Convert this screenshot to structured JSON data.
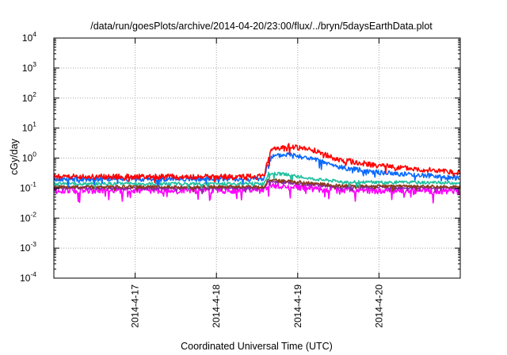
{
  "chart_data": {
    "type": "line",
    "title": "/data/run/goesPlots/archive/2014-04-20/23:00/flux/../bryn/5daysEarthData.plot",
    "xlabel": "Coordinated Universal Time (UTC)",
    "ylabel": "cGy/day",
    "yscale": "log",
    "ylim": [
      0.0001,
      10000
    ],
    "xlim": [
      0,
      5
    ],
    "grid": true,
    "y_ticks": [
      {
        "base": "10",
        "exp": "-4"
      },
      {
        "base": "10",
        "exp": "-3"
      },
      {
        "base": "10",
        "exp": "-2"
      },
      {
        "base": "10",
        "exp": "-1"
      },
      {
        "base": "10",
        "exp": "0"
      },
      {
        "base": "10",
        "exp": "1"
      },
      {
        "base": "10",
        "exp": "2"
      },
      {
        "base": "10",
        "exp": "3"
      },
      {
        "base": "10",
        "exp": "4"
      }
    ],
    "x_ticks": [
      {
        "label": "2014-4-17",
        "value": 1
      },
      {
        "label": "2014-4-18",
        "value": 2
      },
      {
        "label": "2014-4-19",
        "value": 3
      },
      {
        "label": "2014-4-20",
        "value": 4
      }
    ],
    "series": [
      {
        "color": "#ff0000",
        "knots": [
          [
            0,
            0.24
          ],
          [
            2.58,
            0.24
          ],
          [
            2.62,
            0.6
          ],
          [
            2.68,
            1.9
          ],
          [
            2.9,
            2.5
          ],
          [
            3.2,
            1.8
          ],
          [
            3.5,
            0.9
          ],
          [
            4.0,
            0.55
          ],
          [
            5.0,
            0.32
          ]
        ],
        "noise": 0.09
      },
      {
        "color": "#0a6aff",
        "knots": [
          [
            0,
            0.2
          ],
          [
            2.58,
            0.2
          ],
          [
            2.62,
            0.5
          ],
          [
            2.68,
            1.1
          ],
          [
            2.9,
            1.35
          ],
          [
            3.2,
            0.9
          ],
          [
            3.5,
            0.5
          ],
          [
            4.0,
            0.33
          ],
          [
            5.0,
            0.22
          ]
        ],
        "noise": 0.08
      },
      {
        "color": "#20c0a0",
        "knots": [
          [
            0,
            0.14
          ],
          [
            2.58,
            0.14
          ],
          [
            2.64,
            0.3
          ],
          [
            2.8,
            0.3
          ],
          [
            3.2,
            0.2
          ],
          [
            3.6,
            0.16
          ],
          [
            5.0,
            0.15
          ]
        ],
        "noise": 0.05
      },
      {
        "color": "#8a3a1a",
        "knots": [
          [
            0,
            0.11
          ],
          [
            2.58,
            0.11
          ],
          [
            2.64,
            0.19
          ],
          [
            2.9,
            0.17
          ],
          [
            3.5,
            0.12
          ],
          [
            5.0,
            0.11
          ]
        ],
        "noise": 0.05
      },
      {
        "color": "#8a2aa8",
        "knots": [
          [
            0,
            0.1
          ],
          [
            2.58,
            0.1
          ],
          [
            2.64,
            0.17
          ],
          [
            2.9,
            0.15
          ],
          [
            3.5,
            0.11
          ],
          [
            5.0,
            0.1
          ]
        ],
        "noise": 0.05
      },
      {
        "color": "#ff00ff",
        "knots": [
          [
            0,
            0.085
          ],
          [
            2.58,
            0.085
          ],
          [
            2.64,
            0.13
          ],
          [
            2.9,
            0.11
          ],
          [
            3.5,
            0.085
          ],
          [
            5.0,
            0.08
          ]
        ],
        "noise": 0.11
      }
    ]
  }
}
